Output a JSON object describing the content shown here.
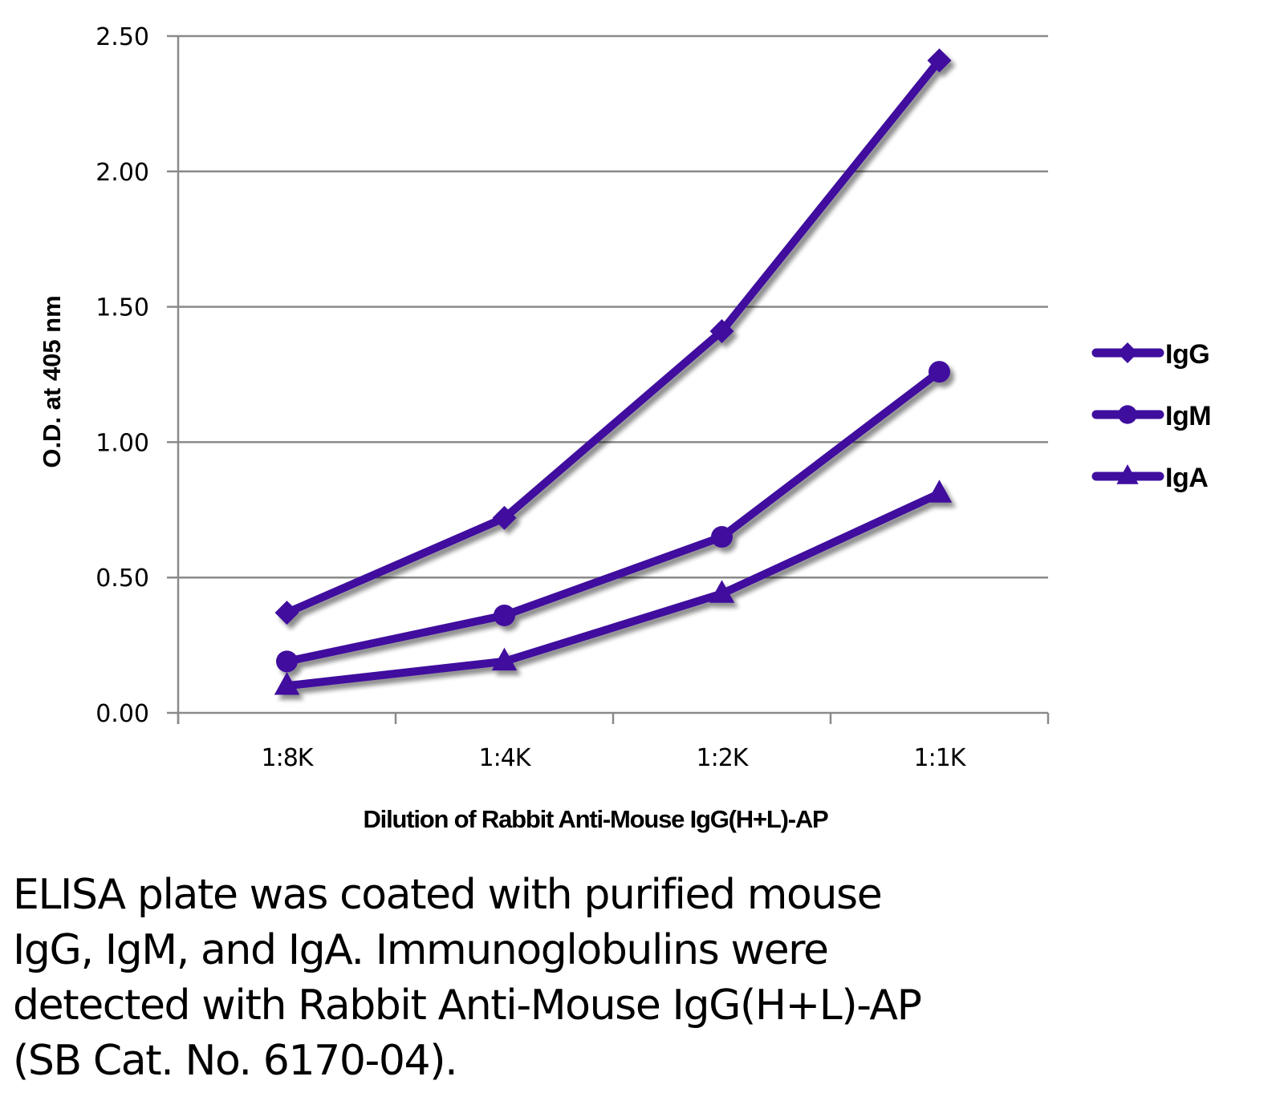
{
  "chart_data": {
    "type": "line",
    "title": "",
    "xlabel": "Dilution of Rabbit Anti-Mouse IgG(H+L)-AP",
    "ylabel": "O.D. at 405 nm",
    "categories": [
      "1:8K",
      "1:4K",
      "1:2K",
      "1:1K"
    ],
    "ylim": [
      0,
      2.5
    ],
    "yticks": [
      0,
      0.5,
      1.0,
      1.5,
      2.0,
      2.5
    ],
    "ytick_labels": [
      "0.00",
      "0.50",
      "1.00",
      "1.50",
      "2.00",
      "2.50"
    ],
    "grid": "horizontal",
    "legend_position": "right",
    "series": [
      {
        "name": "IgG",
        "marker": "diamond",
        "color": "#3f0e9e",
        "values": [
          0.37,
          0.72,
          1.41,
          2.41
        ]
      },
      {
        "name": "IgM",
        "marker": "circle",
        "color": "#3f0e9e",
        "values": [
          0.19,
          0.36,
          0.65,
          1.26
        ]
      },
      {
        "name": "IgA",
        "marker": "triangle",
        "color": "#3f0e9e",
        "values": [
          0.1,
          0.19,
          0.44,
          0.81
        ]
      }
    ],
    "colors": {
      "series": "#3f0e9e",
      "grid": "#8a8a8a",
      "axis": "#8a8a8a",
      "shadow": "#8c8c8c"
    }
  },
  "caption": {
    "lines": [
      "ELISA plate was coated with purified mouse",
      "IgG, IgM, and IgA.  Immunoglobulins were",
      "detected with Rabbit Anti-Mouse IgG(H+L)-AP",
      "(SB Cat. No. 6170-04)."
    ]
  }
}
